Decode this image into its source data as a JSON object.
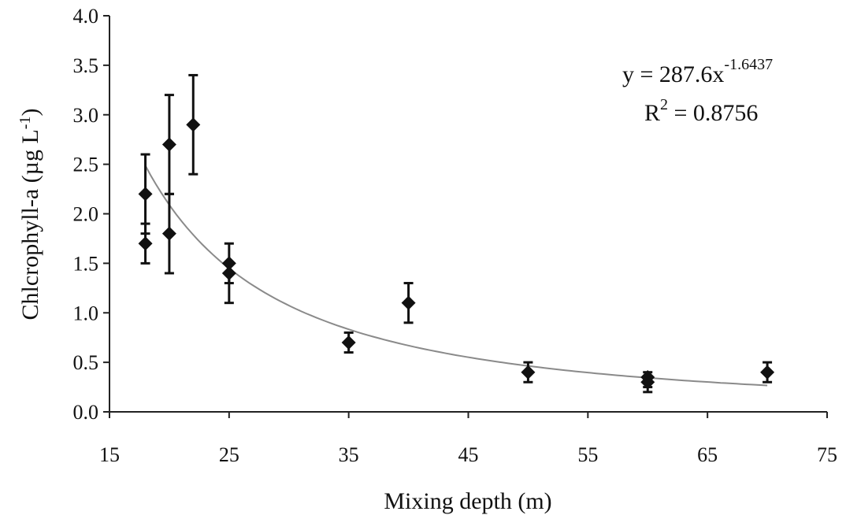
{
  "chart_data": {
    "type": "scatter",
    "title": "",
    "xlabel": "Mixing depth (m)",
    "ylabel_main": "Chlcrophyll-a (µg L",
    "ylabel_sup": "-1",
    "ylabel_close": ")",
    "xlim": [
      15,
      75
    ],
    "ylim": [
      0.0,
      4.0
    ],
    "x_ticks": [
      15,
      25,
      35,
      45,
      55,
      65,
      75
    ],
    "x_tick_labels": [
      "15",
      "25",
      "35",
      "45",
      "55",
      "65",
      "75"
    ],
    "y_ticks": [
      0.0,
      0.5,
      1.0,
      1.5,
      2.0,
      2.5,
      3.0,
      3.5,
      4.0
    ],
    "y_tick_labels": [
      "0.0",
      "0.5",
      "1.0",
      "1.5",
      "2.0",
      "2.5",
      "3.0",
      "3.5",
      "4.0"
    ],
    "grid": false,
    "points": [
      {
        "x": 18,
        "y": 1.7,
        "err_low": 1.5,
        "err_high": 1.9
      },
      {
        "x": 18,
        "y": 2.2,
        "err_low": 1.8,
        "err_high": 2.6
      },
      {
        "x": 20,
        "y": 1.8,
        "err_low": 1.4,
        "err_high": 2.2
      },
      {
        "x": 20,
        "y": 2.7,
        "err_low": 2.2,
        "err_high": 3.2
      },
      {
        "x": 22,
        "y": 2.9,
        "err_low": 2.4,
        "err_high": 3.4
      },
      {
        "x": 25,
        "y": 1.5,
        "err_low": 1.3,
        "err_high": 1.7
      },
      {
        "x": 25,
        "y": 1.4,
        "err_low": 1.1,
        "err_high": 1.5
      },
      {
        "x": 35,
        "y": 0.7,
        "err_low": 0.6,
        "err_high": 0.8
      },
      {
        "x": 40,
        "y": 1.1,
        "err_low": 0.9,
        "err_high": 1.3
      },
      {
        "x": 50,
        "y": 0.4,
        "err_low": 0.3,
        "err_high": 0.5
      },
      {
        "x": 60,
        "y": 0.35,
        "err_low": 0.25,
        "err_high": 0.4
      },
      {
        "x": 60,
        "y": 0.3,
        "err_low": 0.2,
        "err_high": 0.35
      },
      {
        "x": 70,
        "y": 0.4,
        "err_low": 0.3,
        "err_high": 0.5
      }
    ],
    "fit": {
      "model": "power",
      "a": 287.6,
      "b": -1.6437,
      "x_range": [
        18,
        70
      ]
    },
    "annotations": {
      "equation_prefix": "y = 287.6x",
      "equation_exponent": "-1.6437",
      "r2_prefix": "R",
      "r2_sup": "2",
      "r2_value": " = 0.8756"
    }
  }
}
